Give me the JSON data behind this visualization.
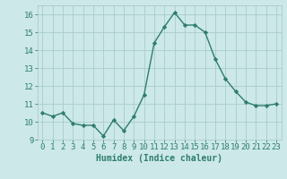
{
  "x": [
    0,
    1,
    2,
    3,
    4,
    5,
    6,
    7,
    8,
    9,
    10,
    11,
    12,
    13,
    14,
    15,
    16,
    17,
    18,
    19,
    20,
    21,
    22,
    23
  ],
  "y": [
    10.5,
    10.3,
    10.5,
    9.9,
    9.8,
    9.8,
    9.2,
    10.1,
    9.5,
    10.3,
    11.5,
    14.4,
    15.3,
    16.1,
    15.4,
    15.4,
    15.0,
    13.5,
    12.4,
    11.7,
    11.1,
    10.9,
    10.9,
    11.0
  ],
  "xlabel": "Humidex (Indice chaleur)",
  "ylim": [
    9,
    16.5
  ],
  "xlim": [
    -0.5,
    23.5
  ],
  "yticks": [
    9,
    10,
    11,
    12,
    13,
    14,
    15,
    16
  ],
  "xticks": [
    0,
    1,
    2,
    3,
    4,
    5,
    6,
    7,
    8,
    9,
    10,
    11,
    12,
    13,
    14,
    15,
    16,
    17,
    18,
    19,
    20,
    21,
    22,
    23
  ],
  "line_color": "#2e7d6e",
  "marker": "D",
  "marker_size": 2.2,
  "bg_color": "#cce8e8",
  "grid_color": "#aacccc",
  "tick_color": "#2e7d6e",
  "label_color": "#2e7d6e",
  "xlabel_fontsize": 7,
  "tick_fontsize": 6.5,
  "line_width": 1.0
}
